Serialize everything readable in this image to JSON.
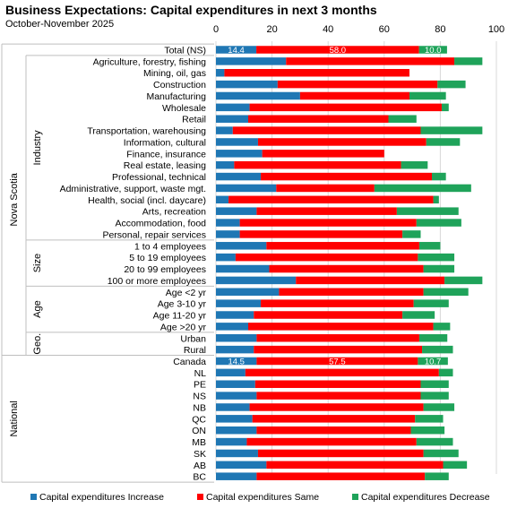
{
  "chart_data": {
    "type": "bar",
    "orientation": "horizontal",
    "stacked": true,
    "title": "Business Expectations: Capital expenditures in next 3 months",
    "subtitle": "October-November 2025",
    "xlim": [
      0,
      100
    ],
    "x_ticks": [
      "0",
      "20",
      "40",
      "60",
      "80",
      "100"
    ],
    "grid": true,
    "legend_position": "bottom",
    "colors": {
      "increase": "#1f77b4",
      "same": "#ff0000",
      "decrease": "#1fa35a",
      "grid": "#d9d9d9",
      "separator": "#bfbfbf"
    },
    "categories": [
      "Total (NS)",
      "Agriculture, forestry, fishing",
      "Mining, oil, gas",
      "Construction",
      "Manufacturing",
      "Wholesale",
      "Retail",
      "Transportation, warehousing",
      "Information, cultural",
      "Finance, insurance",
      "Real estate, leasing",
      "Professional, technical",
      "Administrative, support, waste mgt.",
      "Health, social (incl. daycare)",
      "Arts, recreation",
      "Accommodation, food",
      "Personal, repair services",
      "1 to 4 employees",
      "5 to 19 employees",
      "20 to 99 employees",
      "100 or more employees",
      "Age <2 yr",
      "Age 3-10 yr",
      "Age 11-20 yr",
      "Age >20 yr",
      "Urban",
      "Rural",
      "Canada",
      "NL",
      "PE",
      "NS",
      "NB",
      "QC",
      "ON",
      "MB",
      "SK",
      "AB",
      "BC"
    ],
    "series": [
      {
        "name": "Capital expenditures Increase",
        "key": "increase",
        "values": [
          14.4,
          25,
          3,
          22,
          30,
          12,
          11.5,
          6,
          15,
          16.5,
          6.5,
          16,
          21.5,
          4.5,
          14.5,
          8.5,
          8.5,
          18,
          7,
          19,
          28.5,
          22.5,
          16,
          13.5,
          11.5,
          14.5,
          13.5,
          14.5,
          10.5,
          14,
          14.5,
          12,
          13,
          14.5,
          11,
          15,
          18,
          14.5
        ]
      },
      {
        "name": "Capital expenditures Same",
        "key": "same",
        "values": [
          58.0,
          60,
          66,
          57,
          39,
          68.5,
          50,
          67,
          60,
          43.5,
          59.5,
          61,
          35,
          73,
          50,
          63,
          58,
          54.5,
          65,
          55,
          53,
          51.5,
          54.5,
          53,
          66,
          58,
          60,
          57.5,
          69,
          59,
          58.5,
          62,
          58,
          55,
          60.5,
          59,
          63,
          60
        ]
      },
      {
        "name": "Capital expenditures Decrease",
        "key": "decrease",
        "values": [
          10.0,
          10,
          0,
          10,
          13,
          2.5,
          10,
          22,
          12,
          0,
          9.5,
          5,
          34.5,
          2,
          22,
          16,
          6.5,
          7.5,
          13,
          11,
          13.5,
          16,
          12.5,
          11.5,
          6,
          10,
          11,
          10.7,
          5,
          10,
          10,
          11,
          10,
          12,
          13,
          12.5,
          8.5,
          8.5
        ]
      }
    ],
    "data_labels": [
      {
        "category": "Total (NS)",
        "increase": "14.4",
        "same": "58.0",
        "decrease": "10.0"
      },
      {
        "category": "Canada",
        "increase": "14.5",
        "same": "57.5",
        "decrease": "10.7"
      }
    ],
    "groups": [
      {
        "label": "Nova Scotia",
        "sub": [
          {
            "label": "Industry",
            "from": "Agriculture, forestry, fishing",
            "to": "Personal, repair services"
          },
          {
            "label": "Size",
            "from": "1 to 4 employees",
            "to": "100 or more employees"
          },
          {
            "label": "Age",
            "from": "Age <2 yr",
            "to": "Age >20 yr"
          },
          {
            "label": "Geo.",
            "from": "Urban",
            "to": "Rural"
          }
        ],
        "from": "Total (NS)",
        "to": "Rural"
      },
      {
        "label": "National",
        "sub": [],
        "from": "Canada",
        "to": "BC"
      }
    ]
  }
}
